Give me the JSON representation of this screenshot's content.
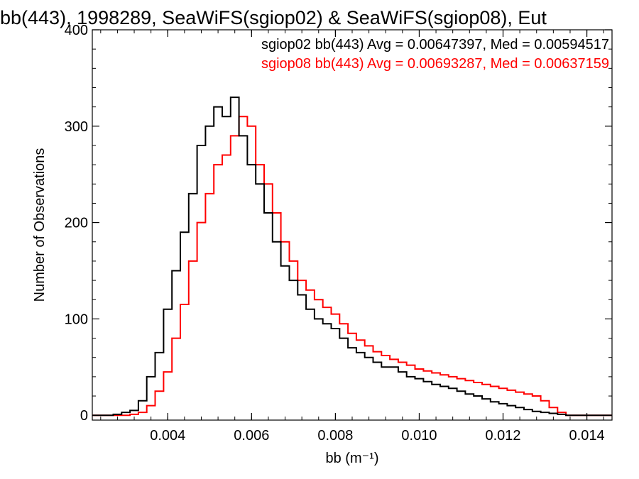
{
  "chart_data": {
    "type": "histogram",
    "title": "bb(443), 1998289, SeaWiFS(sgiop02) & SeaWiFS(sgiop08), Eut",
    "xlabel": "bb (m⁻¹)",
    "ylabel": "Number of Observations",
    "xlim": [
      0.0022,
      0.0146
    ],
    "ylim": [
      -5,
      400
    ],
    "xticks": [
      0.004,
      0.006,
      0.008,
      0.01,
      0.012,
      0.014
    ],
    "xtick_labels": [
      "0.004",
      "0.006",
      "0.008",
      "0.010",
      "0.012",
      "0.014"
    ],
    "yticks": [
      0,
      100,
      200,
      300,
      400
    ],
    "ytick_labels": [
      "0",
      "100",
      "200",
      "300",
      "400"
    ],
    "grid": false,
    "annotations": [
      {
        "text": "sgiop02 bb(443) Avg = 0.00647397, Med = 0.00594517",
        "color": "#000000"
      },
      {
        "text": "sgiop08 bb(443) Avg = 0.00693287, Med = 0.00637159",
        "color": "#ff0000"
      }
    ],
    "series": [
      {
        "name": "sgiop02",
        "color": "#000000",
        "x": [
          0.0026,
          0.0028,
          0.003,
          0.0032,
          0.0034,
          0.0036,
          0.0038,
          0.004,
          0.0042,
          0.0044,
          0.0046,
          0.0048,
          0.005,
          0.0052,
          0.0054,
          0.0056,
          0.0058,
          0.006,
          0.0062,
          0.0064,
          0.0066,
          0.0068,
          0.007,
          0.0072,
          0.0074,
          0.0076,
          0.0078,
          0.008,
          0.0082,
          0.0084,
          0.0086,
          0.0088,
          0.009,
          0.0092,
          0.0094,
          0.0096,
          0.0098,
          0.01,
          0.0102,
          0.0104,
          0.0106,
          0.0108,
          0.011,
          0.0112,
          0.0114,
          0.0116,
          0.0118,
          0.012,
          0.0122,
          0.0124,
          0.0126,
          0.0128,
          0.013,
          0.0132,
          0.0134,
          0.0136,
          0.0138
        ],
        "values": [
          0,
          1,
          3,
          5,
          15,
          40,
          65,
          110,
          150,
          190,
          230,
          280,
          300,
          320,
          310,
          330,
          290,
          260,
          240,
          210,
          180,
          155,
          140,
          125,
          110,
          100,
          95,
          90,
          80,
          70,
          65,
          60,
          55,
          50,
          50,
          45,
          40,
          38,
          35,
          32,
          30,
          28,
          25,
          22,
          20,
          17,
          14,
          12,
          10,
          8,
          6,
          4,
          3,
          2,
          1,
          0,
          0
        ]
      },
      {
        "name": "sgiop08",
        "color": "#ff0000",
        "x": [
          0.0026,
          0.0028,
          0.003,
          0.0032,
          0.0034,
          0.0036,
          0.0038,
          0.004,
          0.0042,
          0.0044,
          0.0046,
          0.0048,
          0.005,
          0.0052,
          0.0054,
          0.0056,
          0.0058,
          0.006,
          0.0062,
          0.0064,
          0.0066,
          0.0068,
          0.007,
          0.0072,
          0.0074,
          0.0076,
          0.0078,
          0.008,
          0.0082,
          0.0084,
          0.0086,
          0.0088,
          0.009,
          0.0092,
          0.0094,
          0.0096,
          0.0098,
          0.01,
          0.0102,
          0.0104,
          0.0106,
          0.0108,
          0.011,
          0.0112,
          0.0114,
          0.0116,
          0.0118,
          0.012,
          0.0122,
          0.0124,
          0.0126,
          0.0128,
          0.013,
          0.0132,
          0.0134,
          0.0136,
          0.0138
        ],
        "values": [
          0,
          0,
          0,
          1,
          3,
          10,
          25,
          45,
          80,
          115,
          160,
          200,
          230,
          260,
          270,
          290,
          310,
          300,
          260,
          240,
          210,
          180,
          160,
          140,
          130,
          120,
          112,
          105,
          95,
          85,
          78,
          72,
          66,
          62,
          58,
          55,
          52,
          48,
          46,
          44,
          42,
          40,
          38,
          36,
          34,
          32,
          30,
          28,
          26,
          24,
          22,
          20,
          15,
          8,
          3,
          0,
          0
        ]
      }
    ]
  }
}
